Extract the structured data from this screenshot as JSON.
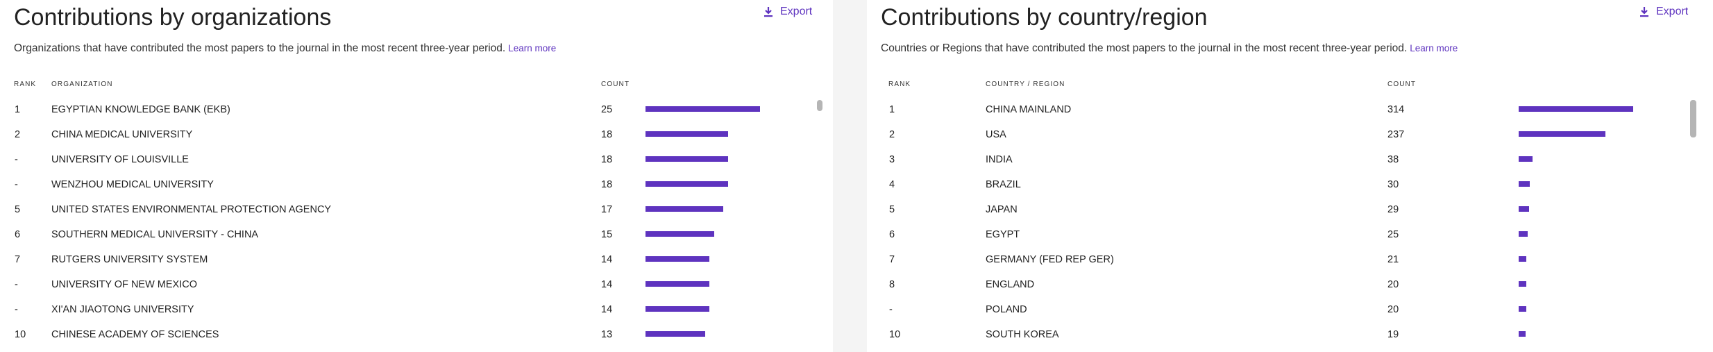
{
  "org_panel": {
    "title": "Contributions by organizations",
    "export_label": "Export",
    "description": "Organizations that have contributed the most papers to the journal in the most recent three-year period.",
    "learn_more": "Learn more",
    "headers": {
      "rank": "RANK",
      "name": "ORGANIZATION",
      "count": "COUNT"
    },
    "rows": [
      {
        "rank": "1",
        "name": "EGYPTIAN KNOWLEDGE BANK (EKB)",
        "count": "25",
        "value": 25
      },
      {
        "rank": "2",
        "name": "CHINA MEDICAL UNIVERSITY",
        "count": "18",
        "value": 18
      },
      {
        "rank": "-",
        "name": "UNIVERSITY OF LOUISVILLE",
        "count": "18",
        "value": 18
      },
      {
        "rank": "-",
        "name": "WENZHOU MEDICAL UNIVERSITY",
        "count": "18",
        "value": 18
      },
      {
        "rank": "5",
        "name": "UNITED STATES ENVIRONMENTAL PROTECTION AGENCY",
        "count": "17",
        "value": 17
      },
      {
        "rank": "6",
        "name": "SOUTHERN MEDICAL UNIVERSITY - CHINA",
        "count": "15",
        "value": 15
      },
      {
        "rank": "7",
        "name": "RUTGERS UNIVERSITY SYSTEM",
        "count": "14",
        "value": 14
      },
      {
        "rank": "-",
        "name": "UNIVERSITY OF NEW MEXICO",
        "count": "14",
        "value": 14
      },
      {
        "rank": "-",
        "name": "XI'AN JIAOTONG UNIVERSITY",
        "count": "14",
        "value": 14
      },
      {
        "rank": "10",
        "name": "CHINESE ACADEMY OF SCIENCES",
        "count": "13",
        "value": 13
      }
    ]
  },
  "country_panel": {
    "title": "Contributions by country/region",
    "export_label": "Export",
    "description": "Countries or Regions that have contributed the most papers to the journal in the most recent three-year period.",
    "learn_more": "Learn more",
    "headers": {
      "rank": "RANK",
      "name": "COUNTRY / REGION",
      "count": "COUNT"
    },
    "rows": [
      {
        "rank": "1",
        "name": "CHINA MAINLAND",
        "count": "314",
        "value": 314
      },
      {
        "rank": "2",
        "name": "USA",
        "count": "237",
        "value": 237
      },
      {
        "rank": "3",
        "name": "INDIA",
        "count": "38",
        "value": 38
      },
      {
        "rank": "4",
        "name": "BRAZIL",
        "count": "30",
        "value": 30
      },
      {
        "rank": "5",
        "name": "JAPAN",
        "count": "29",
        "value": 29
      },
      {
        "rank": "6",
        "name": "EGYPT",
        "count": "25",
        "value": 25
      },
      {
        "rank": "7",
        "name": "GERMANY (FED REP GER)",
        "count": "21",
        "value": 21
      },
      {
        "rank": "8",
        "name": "ENGLAND",
        "count": "20",
        "value": 20
      },
      {
        "rank": "-",
        "name": "POLAND",
        "count": "20",
        "value": 20
      },
      {
        "rank": "10",
        "name": "SOUTH KOREA",
        "count": "19",
        "value": 19
      }
    ]
  },
  "colors": {
    "accent": "#5e33bf",
    "scrollbar": "#b5b5b5",
    "gutter": "#f4f4f4"
  },
  "icons": {
    "export": "download-icon"
  }
}
